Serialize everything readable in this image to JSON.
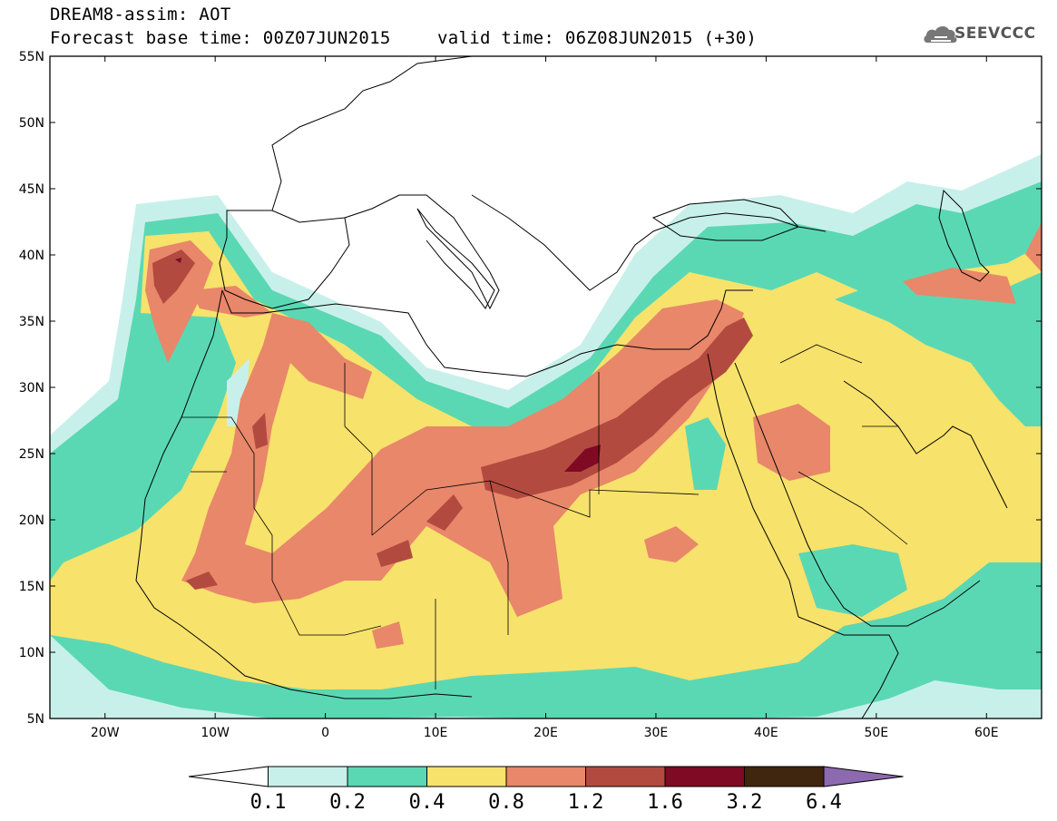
{
  "header": {
    "title": "DREAM8-assim: AOT",
    "base_time": "Forecast base time: 00Z07JUN2015",
    "valid_time": "valid time: 06Z08JUN2015 (+30)",
    "logo_text": "SEEVCCC"
  },
  "map": {
    "projection": "lat-lon",
    "lon_range": [
      -25,
      65
    ],
    "lat_range": [
      5,
      55
    ],
    "lat_ticks": [
      "5N",
      "10N",
      "15N",
      "20N",
      "25N",
      "30N",
      "35N",
      "40N",
      "45N",
      "50N",
      "55N"
    ],
    "lon_ticks": [
      "20W",
      "10W",
      "0",
      "10E",
      "20E",
      "30E",
      "40E",
      "50E",
      "60E"
    ]
  },
  "colorbar": {
    "levels": [
      "0.1",
      "0.2",
      "0.4",
      "0.8",
      "1.2",
      "1.6",
      "3.2",
      "6.4"
    ],
    "colors": [
      "#ffffff",
      "#c8f0ea",
      "#5ad8b4",
      "#f7e26b",
      "#e8876a",
      "#b34a3f",
      "#7f0a24",
      "#40250f",
      "#8d6ab0"
    ]
  }
}
